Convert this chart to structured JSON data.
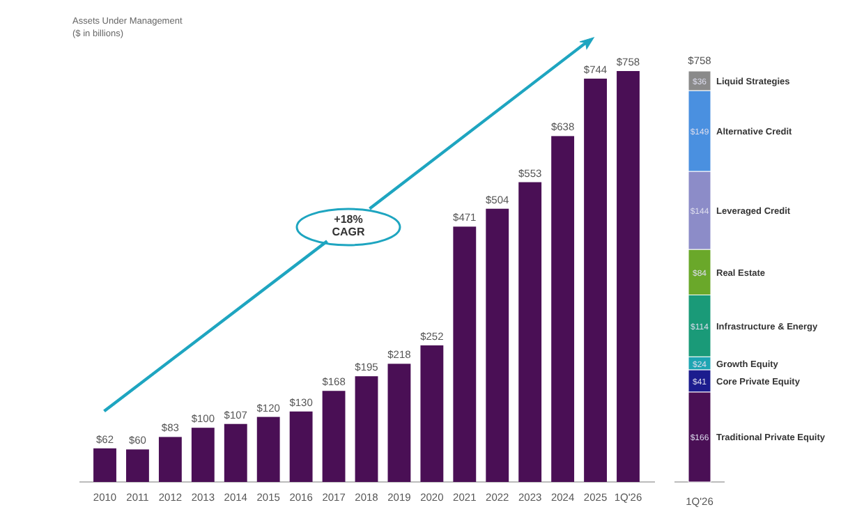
{
  "chart_data": [
    {
      "type": "bar",
      "title": "Assets Under Management",
      "subtitle": "($ in billions)",
      "categories": [
        "2010",
        "2011",
        "2012",
        "2013",
        "2014",
        "2015",
        "2016",
        "2017",
        "2018",
        "2019",
        "2020",
        "2021",
        "2022",
        "2023",
        "2024",
        "2025",
        "1Q'26"
      ],
      "values": [
        62,
        60,
        83,
        100,
        107,
        120,
        130,
        168,
        195,
        218,
        252,
        471,
        504,
        553,
        638,
        744,
        758
      ],
      "value_labels": [
        "$62",
        "$60",
        "$83",
        "$100",
        "$107",
        "$120",
        "$130",
        "$168",
        "$195",
        "$218",
        "$252",
        "$471",
        "$504",
        "$553",
        "$638",
        "$744",
        "$758"
      ],
      "color": "#4a0f55",
      "tick_labels": "x",
      "annotations": [
        "+18%\nCAGR"
      ]
    },
    {
      "type": "bar",
      "stacked": true,
      "categories": [
        "1Q'26"
      ],
      "tick_labels": "x",
      "totals": [
        "$758"
      ],
      "series": [
        {
          "name": "Traditional Private Equity",
          "color": "#4a0f55",
          "values": [
            166
          ],
          "value_labels": [
            "$166"
          ]
        },
        {
          "name": "Core Private Equity",
          "color": "#1c1c8e",
          "values": [
            41
          ],
          "value_labels": [
            "$41"
          ]
        },
        {
          "name": "Growth Equity",
          "color": "#1ea5b2",
          "values": [
            24
          ],
          "value_labels": [
            "$24"
          ]
        },
        {
          "name": "Infrastructure & Energy",
          "color": "#1a9a78",
          "values": [
            114
          ],
          "value_labels": [
            "$114"
          ]
        },
        {
          "name": "Real Estate",
          "color": "#6aa82a",
          "values": [
            84
          ],
          "value_labels": [
            "$84"
          ]
        },
        {
          "name": "Leveraged Credit",
          "color": "#8c8cc8",
          "values": [
            144
          ],
          "value_labels": [
            "$144"
          ]
        },
        {
          "name": "Alternative Credit",
          "color": "#4a90e0",
          "values": [
            149
          ],
          "value_labels": [
            "$149"
          ]
        },
        {
          "name": "Liquid Strategies",
          "color": "#8a8a8a",
          "values": [
            36
          ],
          "value_labels": [
            "$36"
          ]
        }
      ]
    }
  ]
}
